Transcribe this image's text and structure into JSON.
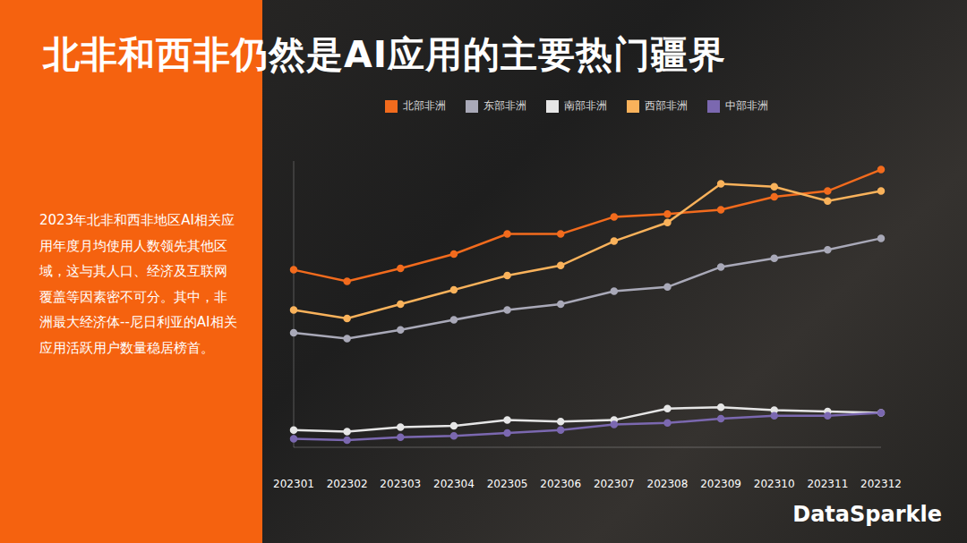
{
  "chart_data": {
    "type": "line",
    "title": "北非和西非仍然是AI应用的主要热门疆界",
    "description": "2023年北非和西非地区AI相关应用年度月均使用人数领先其他区域，这与其人口、经济及互联网覆盖等因素密不可分。其中，非洲最大经济体--尼日利亚的AI相关应用活跃用户数量稳居榜首。",
    "brand": "DataSparkle",
    "categories": [
      "202301",
      "202302",
      "202303",
      "202304",
      "202305",
      "202306",
      "202307",
      "202308",
      "202309",
      "202310",
      "202311",
      "202312"
    ],
    "series": [
      {
        "name": "北部非洲",
        "color": "#f26b1d",
        "values": [
          62,
          58,
          62.5,
          67.5,
          74.5,
          74.5,
          80.5,
          81.5,
          83,
          87.5,
          89.5,
          97
        ]
      },
      {
        "name": "东部非洲",
        "color": "#a9a9b8",
        "values": [
          40,
          38,
          41,
          44.5,
          48,
          50,
          54.5,
          56,
          63,
          66,
          69,
          73
        ]
      },
      {
        "name": "南部非洲",
        "color": "#e6e6e6",
        "values": [
          6,
          5.5,
          7,
          7.5,
          9.5,
          9,
          9.5,
          13.5,
          14,
          13,
          12.5,
          12
        ]
      },
      {
        "name": "西部非洲",
        "color": "#f9b25b",
        "values": [
          48,
          45,
          50,
          55,
          60,
          63.5,
          72,
          78.5,
          92,
          91,
          86,
          89.5
        ]
      },
      {
        "name": "中部非洲",
        "color": "#7b68b0",
        "values": [
          3,
          2.5,
          3.5,
          4,
          5,
          6,
          8,
          8.5,
          10,
          11,
          11,
          12
        ]
      }
    ],
    "ylim": [
      0,
      100
    ],
    "legend": "top",
    "marker": "circle",
    "tick_labels": "x",
    "grid": false
  }
}
